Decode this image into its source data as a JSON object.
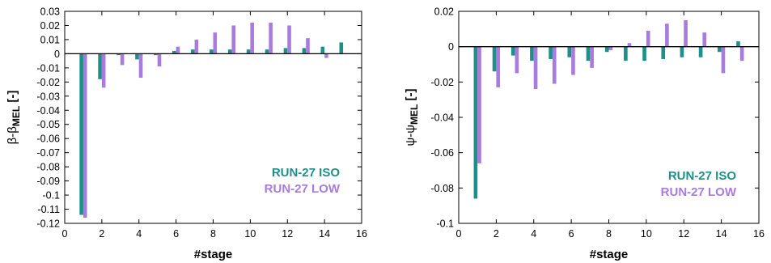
{
  "colors": {
    "iso": "#1e9089",
    "low": "#a87cde"
  },
  "chart_data": [
    {
      "type": "bar",
      "title": "",
      "xlabel": "#stage",
      "ylabel": {
        "main": "β-β",
        "sub": "MEL",
        "unit": " [-]"
      },
      "xlim": [
        0,
        16
      ],
      "ylim": [
        -0.12,
        0.03
      ],
      "xticks": [
        0,
        2,
        4,
        6,
        8,
        10,
        12,
        14,
        16
      ],
      "yticks": [
        0.03,
        0.02,
        0.01,
        0,
        -0.01,
        -0.02,
        -0.03,
        -0.04,
        -0.05,
        -0.06,
        -0.07,
        -0.08,
        -0.09,
        -0.1,
        -0.11,
        -0.12
      ],
      "ytick_labels": [
        "0.03",
        "0.02",
        "0.01",
        "0",
        "-0.01",
        "-0.02",
        "-0.03",
        "-0.04",
        "-0.05",
        "-0.06",
        "-0.07",
        "-0.08",
        "-0.09",
        "-0.1",
        "-0.11",
        "-0.12"
      ],
      "xtick_labels": [
        "0",
        "2",
        "4",
        "6",
        "8",
        "10",
        "12",
        "14",
        "16"
      ],
      "legend_placement": "bottom-right",
      "x": [
        1,
        2,
        3,
        4,
        5,
        6,
        7,
        8,
        9,
        10,
        11,
        12,
        13,
        14,
        15
      ],
      "series": [
        {
          "name": "RUN-27 ISO",
          "values": [
            -0.114,
            -0.018,
            -0.001,
            -0.004,
            -0.001,
            0.002,
            0.003,
            0.003,
            0.003,
            0.003,
            0.003,
            0.004,
            0.004,
            0.005,
            0.008
          ]
        },
        {
          "name": "RUN-27 LOW",
          "values": [
            -0.116,
            -0.024,
            -0.008,
            -0.017,
            -0.009,
            0.005,
            0.01,
            0.015,
            0.02,
            0.022,
            0.022,
            0.02,
            0.011,
            -0.003,
            0.0
          ]
        }
      ]
    },
    {
      "type": "bar",
      "title": "",
      "xlabel": "#stage",
      "ylabel": {
        "main": "ψ-ψ",
        "sub": "MEL",
        "unit": " [-]"
      },
      "xlim": [
        0,
        16
      ],
      "ylim": [
        -0.1,
        0.02
      ],
      "xticks": [
        0,
        2,
        4,
        6,
        8,
        10,
        12,
        14,
        16
      ],
      "yticks": [
        0.02,
        0,
        -0.02,
        -0.04,
        -0.06,
        -0.08,
        -0.1
      ],
      "ytick_labels": [
        "0.02",
        "0",
        "-0.02",
        "-0.04",
        "-0.06",
        "-0.08",
        "-0.1"
      ],
      "xtick_labels": [
        "0",
        "2",
        "4",
        "6",
        "8",
        "10",
        "12",
        "14",
        "16"
      ],
      "legend_placement": "bottom-right",
      "x": [
        1,
        2,
        3,
        4,
        5,
        6,
        7,
        8,
        9,
        10,
        11,
        12,
        13,
        14,
        15
      ],
      "series": [
        {
          "name": "RUN-27 ISO",
          "values": [
            -0.086,
            -0.014,
            -0.005,
            -0.008,
            -0.007,
            -0.006,
            -0.008,
            -0.003,
            -0.008,
            -0.008,
            -0.007,
            -0.006,
            -0.006,
            -0.003,
            0.003
          ]
        },
        {
          "name": "RUN-27 LOW",
          "values": [
            -0.066,
            -0.023,
            -0.015,
            -0.024,
            -0.021,
            -0.016,
            -0.012,
            -0.002,
            0.002,
            0.009,
            0.013,
            0.015,
            0.008,
            -0.015,
            -0.008
          ]
        }
      ]
    }
  ]
}
